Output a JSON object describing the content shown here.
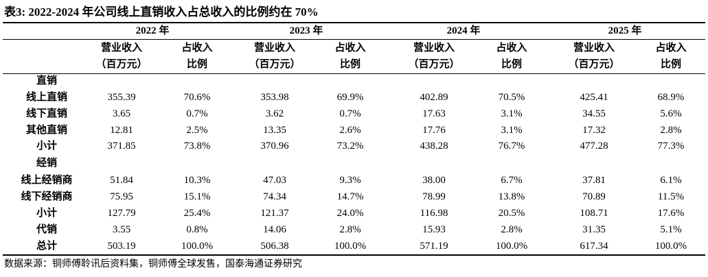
{
  "title": "表3:  2022-2024 年公司线上直销收入占总收入的比例约在 70%",
  "table": {
    "years": [
      "2022 年",
      "2023 年",
      "2024 年",
      "2025 年"
    ],
    "subheaders": [
      [
        "营业收入",
        "（百万元）"
      ],
      [
        "占收入",
        "比例"
      ],
      [
        "营业收入",
        "（百万元）"
      ],
      [
        "占收入",
        "比例"
      ],
      [
        "营业收入",
        "（百万元）"
      ],
      [
        "占收入",
        "比例"
      ],
      [
        "营业收入",
        "（百万元）"
      ],
      [
        "占收入",
        "比例"
      ]
    ],
    "rows": [
      {
        "label": "直销"
      },
      {
        "label": "线上直销",
        "cells": [
          "355.39",
          "70.6%",
          "353.98",
          "69.9%",
          "402.89",
          "70.5%",
          "425.41",
          "68.9%"
        ]
      },
      {
        "label": "线下直销",
        "cells": [
          "3.65",
          "0.7%",
          "3.62",
          "0.7%",
          "17.63",
          "3.1%",
          "34.55",
          "5.6%"
        ]
      },
      {
        "label": "其他直销",
        "cells": [
          "12.81",
          "2.5%",
          "13.35",
          "2.6%",
          "17.76",
          "3.1%",
          "17.32",
          "2.8%"
        ]
      },
      {
        "label": "小计",
        "cells": [
          "371.85",
          "73.8%",
          "370.96",
          "73.2%",
          "438.28",
          "76.7%",
          "477.28",
          "77.3%"
        ]
      },
      {
        "label": "经销"
      },
      {
        "label": "线上经销商",
        "cells": [
          "51.84",
          "10.3%",
          "47.03",
          "9.3%",
          "38.00",
          "6.7%",
          "37.81",
          "6.1%"
        ]
      },
      {
        "label": "线下经销商",
        "cells": [
          "75.95",
          "15.1%",
          "74.34",
          "14.7%",
          "78.99",
          "13.8%",
          "70.89",
          "11.5%"
        ]
      },
      {
        "label": "小计",
        "cells": [
          "127.79",
          "25.4%",
          "121.37",
          "24.0%",
          "116.98",
          "20.5%",
          "108.71",
          "17.6%"
        ]
      },
      {
        "label": "代销",
        "cells": [
          "3.55",
          "0.8%",
          "14.06",
          "2.8%",
          "15.93",
          "2.8%",
          "31.35",
          "5.1%"
        ]
      },
      {
        "label": "总计",
        "cells": [
          "503.19",
          "100.0%",
          "506.38",
          "100.0%",
          "571.19",
          "100.0%",
          "617.34",
          "100.0%"
        ]
      }
    ]
  },
  "source": "数据来源：铜师傅聆讯后资料集，铜师傅全球发售，国泰海通证券研究"
}
